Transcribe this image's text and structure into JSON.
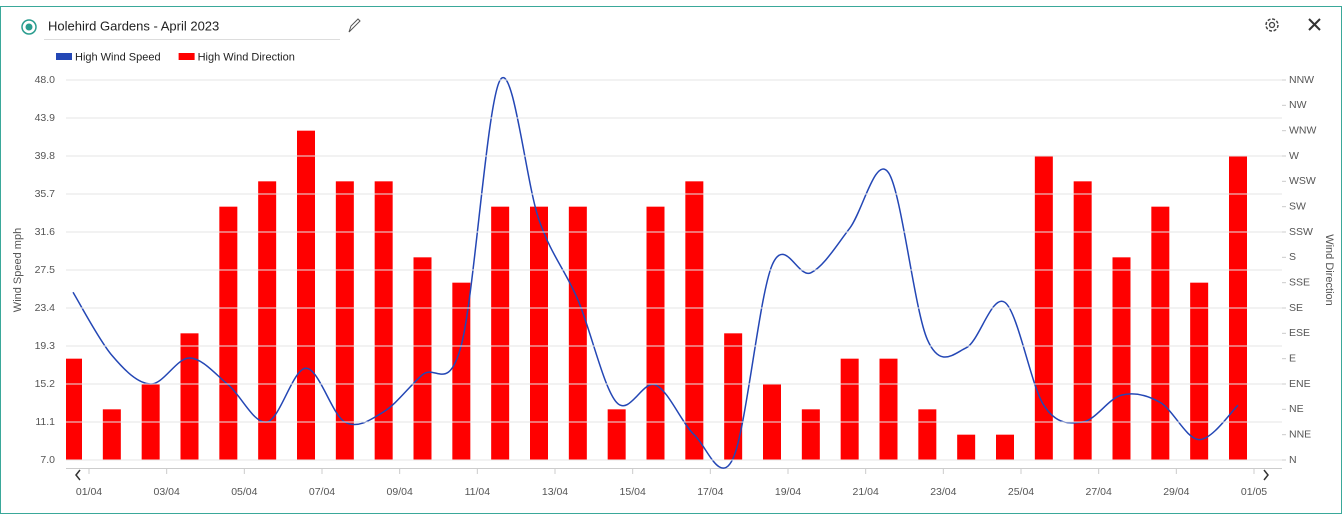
{
  "header": {
    "title": "Holehird Gardens - April 2023"
  },
  "chart_data": {
    "type": "combo",
    "ylabel": "Wind Speed mph",
    "y2label": "Wind Direction",
    "categories": [
      "01/04",
      null,
      "03/04",
      null,
      "05/04",
      null,
      "07/04",
      null,
      "09/04",
      null,
      "11/04",
      null,
      "13/04",
      null,
      "15/04",
      null,
      "17/04",
      null,
      "19/04",
      null,
      "21/04",
      null,
      "23/04",
      null,
      "25/04",
      null,
      "27/04",
      null,
      "29/04",
      null,
      "01/05"
    ],
    "series": [
      {
        "name": "High Wind Speed",
        "type": "line",
        "color": "#2447b5",
        "values": [
          25.1,
          18.3,
          15.2,
          18.0,
          15.1,
          11.1,
          16.9,
          11.1,
          12.2,
          16.2,
          19.4,
          48.0,
          32.9,
          24.3,
          13.2,
          15.1,
          9.7,
          7.2,
          28.0,
          27.2,
          32.0,
          38.0,
          20.0,
          19.1,
          24.0,
          12.9,
          11.1,
          14.0,
          13.2,
          9.2,
          12.9
        ]
      },
      {
        "name": "High Wind Direction",
        "type": "bar",
        "axis": "y2",
        "color": "#ff0000",
        "values": [
          4,
          2,
          3,
          5,
          10,
          11,
          13,
          11,
          11,
          8,
          7,
          10,
          10,
          10,
          2,
          10,
          11,
          5,
          3,
          2,
          4,
          4,
          2,
          1,
          1,
          12,
          11,
          8,
          10,
          7,
          12
        ]
      }
    ],
    "ylim": [
      7,
      48
    ],
    "yticks": [
      {
        "value": 7,
        "label": "7.0"
      },
      11.1,
      15.2,
      19.3,
      23.4,
      27.5,
      31.6,
      35.7,
      39.8,
      43.9,
      {
        "value": 48,
        "label": "48.0"
      }
    ],
    "y2lim": [
      0,
      15
    ],
    "y2ticks": [
      {
        "value": 0,
        "label": "N"
      },
      {
        "value": 1,
        "label": "NNE"
      },
      {
        "value": 2,
        "label": "NE"
      },
      {
        "value": 3,
        "label": "ENE"
      },
      {
        "value": 4,
        "label": "E"
      },
      {
        "value": 5,
        "label": "ESE"
      },
      {
        "value": 6,
        "label": "SE"
      },
      {
        "value": 7,
        "label": "SSE"
      },
      {
        "value": 8,
        "label": "S"
      },
      {
        "value": 9,
        "label": "SSW"
      },
      {
        "value": 10,
        "label": "SW"
      },
      {
        "value": 11,
        "label": "WSW"
      },
      {
        "value": 12,
        "label": "W"
      },
      {
        "value": 13,
        "label": "WNW"
      },
      {
        "value": 14,
        "label": "NW"
      },
      {
        "value": 15,
        "label": "NNW"
      }
    ],
    "grid": true,
    "legend": "top-left"
  }
}
